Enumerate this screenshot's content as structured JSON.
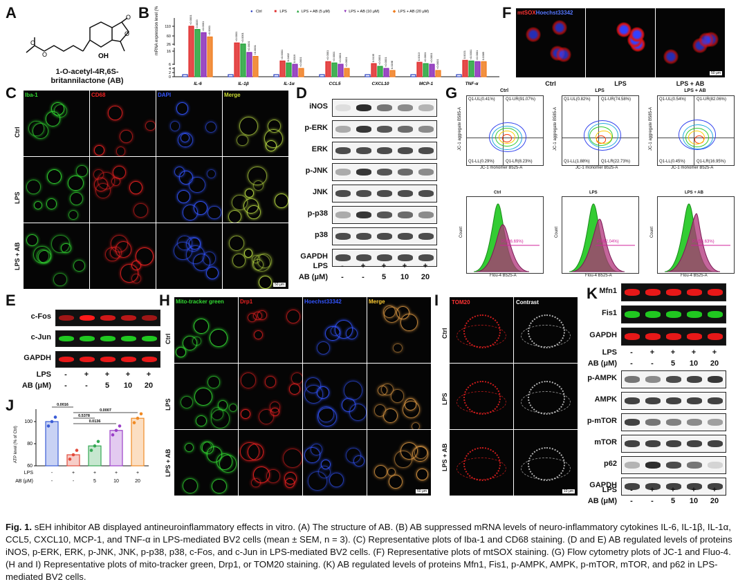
{
  "panels": {
    "a": "A",
    "b": "B",
    "c": "C",
    "d": "D",
    "e": "E",
    "f": "F",
    "g": "G",
    "h": "H",
    "i": "I",
    "j": "J",
    "k": "K"
  },
  "compound": {
    "line1": "1-O-acetyl-4R,6S-",
    "line2": "britannilactone (AB)",
    "oh": "OH"
  },
  "groups": {
    "ctrl": "Ctrl",
    "lps": "LPS",
    "lps_ab": "LPS + AB"
  },
  "chart_b": {
    "type": "bar",
    "ylabel": "mRNA expression level (% of Ctrl)",
    "legend": [
      "Ctrl",
      "LPS",
      "LPS + AB (5 μM)",
      "LPS + AB (10 μM)",
      "LPS + AB (20 μM)"
    ],
    "categories": [
      "IL-6",
      "IL-1β",
      "IL-1α",
      "CCL5",
      "CXCL10",
      "MCP-1",
      "TNF-α"
    ],
    "series": [
      {
        "name": "Ctrl",
        "values": [
          1,
          1,
          1,
          1,
          1,
          1,
          1
        ]
      },
      {
        "name": "LPS",
        "values": [
          110,
          32,
          11,
          10,
          7,
          9,
          12
        ]
      },
      {
        "name": "LPS + AB (5 μM)",
        "values": [
          95,
          27,
          8,
          8,
          5,
          7,
          11
        ]
      },
      {
        "name": "LPS + AB (10 μM)",
        "values": [
          80,
          24,
          6,
          6,
          4,
          6,
          10
        ]
      },
      {
        "name": "LPS + AB (20 μM)",
        "values": [
          60,
          18,
          4,
          4,
          3,
          3,
          10
        ]
      }
    ],
    "yticks": [
      "0",
      "2",
      "4",
      "6",
      "16",
      "26",
      "60",
      "110"
    ],
    "pvals": [
      "<0.0001",
      "0.0033",
      "<0.0001",
      "<0.0001",
      "<0.0001",
      "<0.0001",
      "<0.0001",
      "<0.0001",
      "<0.0001",
      "0.0402",
      "0.0019",
      "<0.0001",
      "<0.0001",
      "<0.0001",
      "<0.0001",
      "<0.0001",
      "0.0135",
      "<0.0001",
      "<0.0001",
      "0.0168",
      "0.0013",
      "<0.0001",
      "<0.0001",
      "<0.0001",
      "0.0021",
      "<0.0001",
      "<0.0001",
      "0.0389",
      "0.0275",
      "0.0023"
    ]
  },
  "c": {
    "channels": [
      "Iba-1",
      "CD68",
      "DAPI",
      "Merge"
    ],
    "scale": "50 μm"
  },
  "d": {
    "proteins": [
      "iNOS",
      "p-ERK",
      "ERK",
      "p-JNK",
      "JNK",
      "p-p38",
      "p38",
      "GAPDH"
    ]
  },
  "treat": {
    "lps_label": "LPS",
    "ab_label": "AB (μM)",
    "lps": [
      "-",
      "+",
      "+",
      "+",
      "+"
    ],
    "ab": [
      "-",
      "-",
      "5",
      "10",
      "20"
    ]
  },
  "e": {
    "proteins": [
      "c-Fos",
      "c-Jun",
      "GAPDH"
    ]
  },
  "f": {
    "title1": "mtSOX",
    "title2": "Hoechst33342",
    "scale": "50 μm"
  },
  "g": {
    "quads": [
      [
        "Q1-UL(0.41%)",
        "Q1-UR(91.07%)",
        "Q1-LL(0.29%)",
        "Q1-LR(8.23%)"
      ],
      [
        "Q1-UL(0.82%)",
        "Q1-UR(74.58%)",
        "Q1-LL(1.88%)",
        "Q1-LR(22.73%)"
      ],
      [
        "Q1-UL(0.54%)",
        "Q1-UR(82.06%)",
        "Q1-LL(0.45%)",
        "Q1-LR(16.95%)"
      ]
    ],
    "p3": [
      "P3(36.69%)",
      "P3(62.04%)",
      "P3(53.63%)"
    ],
    "xaxis_top": "JC-1 monomer B525-A",
    "yaxis_top": "JC-1 aggregate B585-A",
    "xaxis_bot": "Flou-4 B525-A",
    "yaxis_bot": "Count"
  },
  "h": {
    "channels": [
      "Mito-tracker green",
      "Drp1",
      "Hoechst33342",
      "Merge"
    ],
    "scale": "50 μm"
  },
  "i": {
    "channels": [
      "TOM20",
      "Contrast"
    ],
    "scale": "10 μm"
  },
  "j": {
    "chart_data": {
      "type": "bar",
      "categories": [
        "Ctrl",
        "LPS",
        "5",
        "10",
        "20"
      ],
      "values": [
        100,
        70,
        78,
        92,
        103
      ],
      "ylabel": "ATP level (% of Ctrl)",
      "ylim": [
        60,
        110
      ],
      "yticks": [
        "60",
        "80",
        "100"
      ],
      "pvals": [
        "0.0016",
        "0.0007",
        "0.5378",
        "0.0136"
      ],
      "colors": [
        "#3a5cd6",
        "#e24a3b",
        "#34a853",
        "#9b3fc8",
        "#f08a24"
      ]
    }
  },
  "k": {
    "proteins_top": [
      "Mfn1",
      "Fis1",
      "GAPDH"
    ],
    "proteins_bottom": [
      "p-AMPK",
      "AMPK",
      "p-mTOR",
      "mTOR",
      "p62",
      "GAPDH"
    ]
  },
  "caption": {
    "fig": "Fig. 1.",
    "text": "sEH inhibitor AB displayed antineuroinflammatory effects in vitro. (A) The structure of AB. (B) AB suppressed mRNA levels of neuro-inflammatory cytokines IL-6, IL-1β, IL-1α, CCL5, CXCL10, MCP-1, and TNF-α in LPS-mediated BV2 cells (mean ± SEM, n = 3). (C) Representative plots of Iba-1 and CD68 staining. (D and E) AB regulated levels of proteins iNOS, p-ERK, ERK, p-JNK, JNK, p-p38, p38, c-Fos, and c-Jun in LPS-mediated BV2 cells. (F) Representative plots of mtSOX staining. (G) Flow cytometry plots of JC-1 and Fluo-4. (H and I) Representative plots of mito-tracker green, Drp1, or TOM20 staining. (K) AB regulated levels of proteins Mfn1, Fis1, p-AMPK, AMPK, p-mTOR, mTOR, and p62 in LPS-mediated BV2 cells."
  },
  "colors": {
    "ctrl": "#2a3fbf",
    "lps": "#e02b2b",
    "ab5": "#23a33a",
    "ab10": "#8a2bb8",
    "ab20": "#f07d1e"
  }
}
